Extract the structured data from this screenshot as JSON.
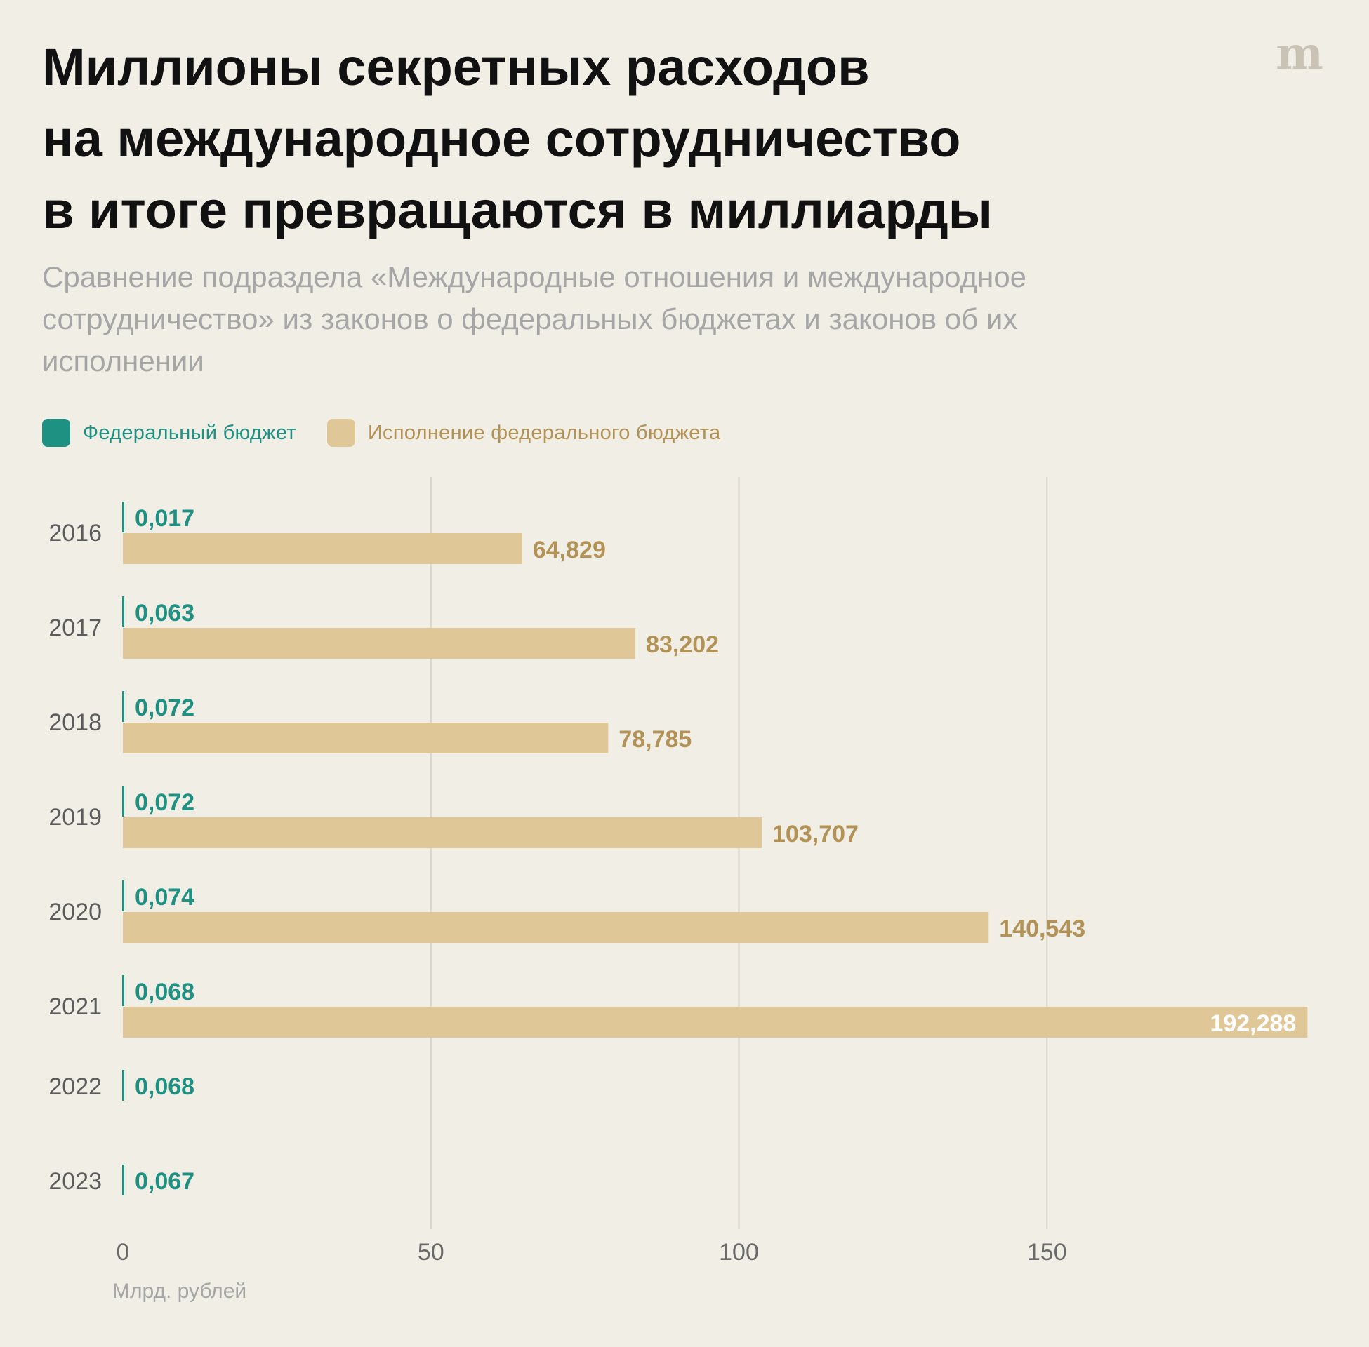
{
  "header": {
    "title_lines": [
      "Миллионы секретных расходов",
      "на международное сотрудничество",
      "в итоге превращаются в миллиарды"
    ],
    "subtitle": "Сравнение подраздела «Международные отношения и международное сотрудничество» из законов о федеральных бюджетах и законов об их исполнении",
    "logo_icon": "meduza-logo-icon"
  },
  "legend": [
    {
      "label": "Федеральный бюджет",
      "color": "#1e9183"
    },
    {
      "label": "Исполнение федерального бюджета",
      "color": "#dfc797"
    }
  ],
  "colors": {
    "budget": "#1e9183",
    "execution": "#dfc797",
    "execution_label": "#b39256",
    "inside_label": "#ffffff",
    "grid": "#d8d3c8",
    "axis_text": "#6a6a6a",
    "year_text": "#5c5c5c",
    "unit_text": "#a6a6a6"
  },
  "chart_data": {
    "type": "bar",
    "orientation": "horizontal",
    "title": "Миллионы секретных расходов на международное сотрудничество в итоге превращаются в миллиарды",
    "categories": [
      "2016",
      "2017",
      "2018",
      "2019",
      "2020",
      "2021",
      "2022",
      "2023"
    ],
    "series": [
      {
        "name": "Федеральный бюджет",
        "values": [
          0.017,
          0.063,
          0.072,
          0.072,
          0.074,
          0.068,
          0.068,
          0.067
        ],
        "labels": [
          "0,017",
          "0,063",
          "0,072",
          "0,072",
          "0,074",
          "0,068",
          "0,068",
          "0,067"
        ]
      },
      {
        "name": "Исполнение федерального бюджета",
        "values": [
          64.829,
          83.202,
          78.785,
          103.707,
          140.543,
          192.288,
          null,
          null
        ],
        "labels": [
          "64,829",
          "83,202",
          "78,785",
          "103,707",
          "140,543",
          "192,288",
          "",
          ""
        ]
      }
    ],
    "xlim": [
      0,
      192.288
    ],
    "xticks": [
      0,
      50,
      100,
      150
    ],
    "xtick_labels": [
      "0",
      "50",
      "100",
      "150"
    ],
    "xlabel": "Млрд. рублей",
    "ylabel": "",
    "grid": true,
    "legend_position": "top-left"
  }
}
